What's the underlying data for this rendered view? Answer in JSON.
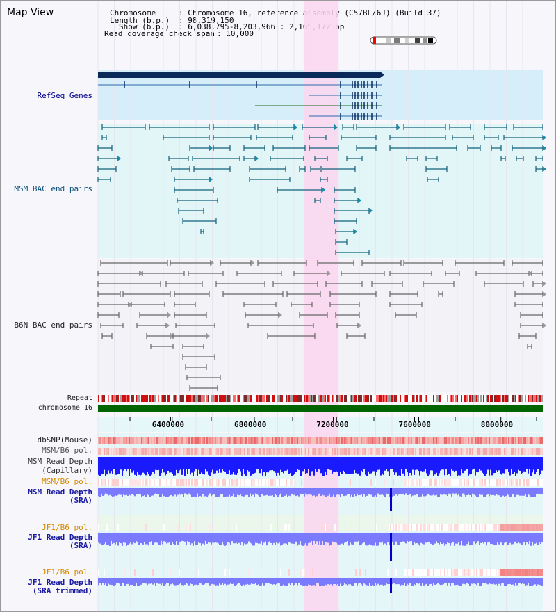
{
  "title": "Map View",
  "info": {
    "chromosome_key": "Chromosome",
    "chromosome_value": ": Chromosome 16, reference assembly (C57BL/6J) (Build 37)",
    "length_key": "Length (b.p.)",
    "length_value": ": 98,319,150",
    "show_key": "Show (b.p.)",
    "show_value": ": 6,038,795-8,203,966 : 2,165,172 bp",
    "coverage_key": "Read coverage check span",
    "coverage_value": ": 10,000"
  },
  "tracks": {
    "refseq": "RefSeq Genes",
    "msm_bac": "MSM BAC end pairs",
    "b6n_bac": "B6N BAC end pairs",
    "repeat": "Repeat",
    "chromosome": "chromosome 16",
    "dbsnp": "dbSNP(Mouse)",
    "msm_pol_1": "MSM/B6 pol.",
    "msm_cap_depth_1": "MSM Read Depth",
    "msm_cap_depth_2": "(Capillary)",
    "msm_pol_2": "MSM/B6 pol.",
    "msm_sra_1": "MSM Read Depth",
    "msm_sra_2": "(SRA)",
    "jf1_pol_1": "JF1/B6 pol.",
    "jf1_sra_1": "JF1 Read Depth",
    "jf1_sra_2": "(SRA)",
    "jf1_pol_2": "JF1/B6 pol.",
    "jf1_trim_1": "JF1 Read Depth",
    "jf1_trim_2": "(SRA trimmed)"
  },
  "ruler": {
    "ticks": [
      {
        "pos": 6400000,
        "label": "6400000"
      },
      {
        "pos": 6800000,
        "label": "6800000"
      },
      {
        "pos": 7200000,
        "label": "7200000"
      },
      {
        "pos": 7600000,
        "label": "7600000"
      },
      {
        "pos": 8000000,
        "label": "8000000"
      }
    ]
  },
  "region": {
    "start": 6038795,
    "end": 8203966
  },
  "highlight": {
    "start": 7040000,
    "end": 7210000
  },
  "colors": {
    "highlight": "#fbd6f0",
    "gene_band": "#d6eefa",
    "bac_band": "#e2f6f8",
    "chromosome": "#006400",
    "depth_blue": "#1a1aff",
    "depth_light": "#7a7aff",
    "snp_pink": "#f5a0a0",
    "pol_orange": "#d88a00",
    "depth_label": "#1a1aa0"
  },
  "icons": {
    "chromosome_ideogram": "chromosome-ideogram-icon"
  }
}
